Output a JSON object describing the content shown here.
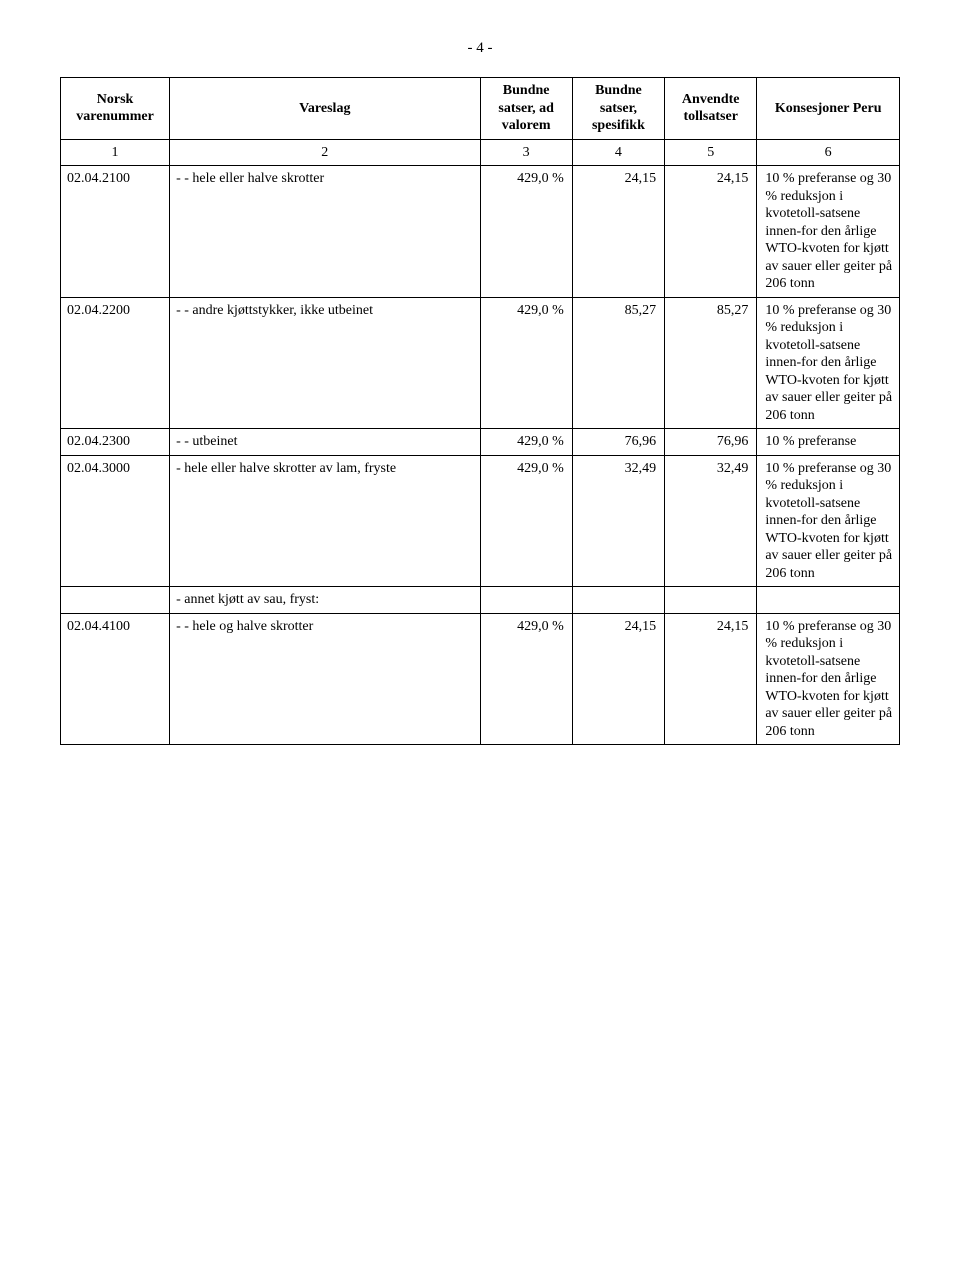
{
  "page_number": "- 4 -",
  "header": {
    "c1": "Norsk varenummer",
    "c2": "Vareslag",
    "c3": "Bundne satser, ad valorem",
    "c4": "Bundne satser, spesifikk",
    "c5": "Anvendte tollsatser",
    "c6": "Konsesjoner Peru"
  },
  "numrow": {
    "c1": "1",
    "c2": "2",
    "c3": "3",
    "c4": "4",
    "c5": "5",
    "c6": "6"
  },
  "rows": [
    {
      "code": "02.04.2100",
      "desc": "- - hele eller halve skrotter",
      "c3": "429,0 %",
      "c4": "24,15",
      "c5": "24,15",
      "c6": "10 % preferanse og 30 % reduksjon i kvotetoll-satsene innen-for den årlige WTO-kvoten for kjøtt av sauer eller geiter på 206 tonn"
    },
    {
      "code": "02.04.2200",
      "desc": "- - andre kjøttstykker, ikke utbeinet",
      "c3": "429,0 %",
      "c4": "85,27",
      "c5": "85,27",
      "c6": "10 % preferanse og 30 % reduksjon i kvotetoll-satsene innen-for den årlige WTO-kvoten for kjøtt av sauer eller geiter på 206 tonn"
    },
    {
      "code": "02.04.2300",
      "desc": "- - utbeinet",
      "c3": "429,0 %",
      "c4": "76,96",
      "c5": "76,96",
      "c6": "10 % preferanse"
    },
    {
      "code": "02.04.3000",
      "desc": "- hele eller halve skrotter av lam, fryste",
      "c3": "429,0 %",
      "c4": "32,49",
      "c5": "32,49",
      "c6": "10 % preferanse og 30 % reduksjon i kvotetoll-satsene innen-for den årlige WTO-kvoten for kjøtt av sauer eller geiter på 206 tonn"
    },
    {
      "code": "",
      "desc": "- annet kjøtt av sau, fryst:",
      "c3": "",
      "c4": "",
      "c5": "",
      "c6": ""
    },
    {
      "code": "02.04.4100",
      "desc": "- - hele og halve skrotter",
      "c3": "429,0 %",
      "c4": "24,15",
      "c5": "24,15",
      "c6": "10 % preferanse og 30 % reduksjon i kvotetoll-satsene innen-for den årlige WTO-kvoten for kjøtt av sauer eller geiter på 206 tonn"
    }
  ]
}
